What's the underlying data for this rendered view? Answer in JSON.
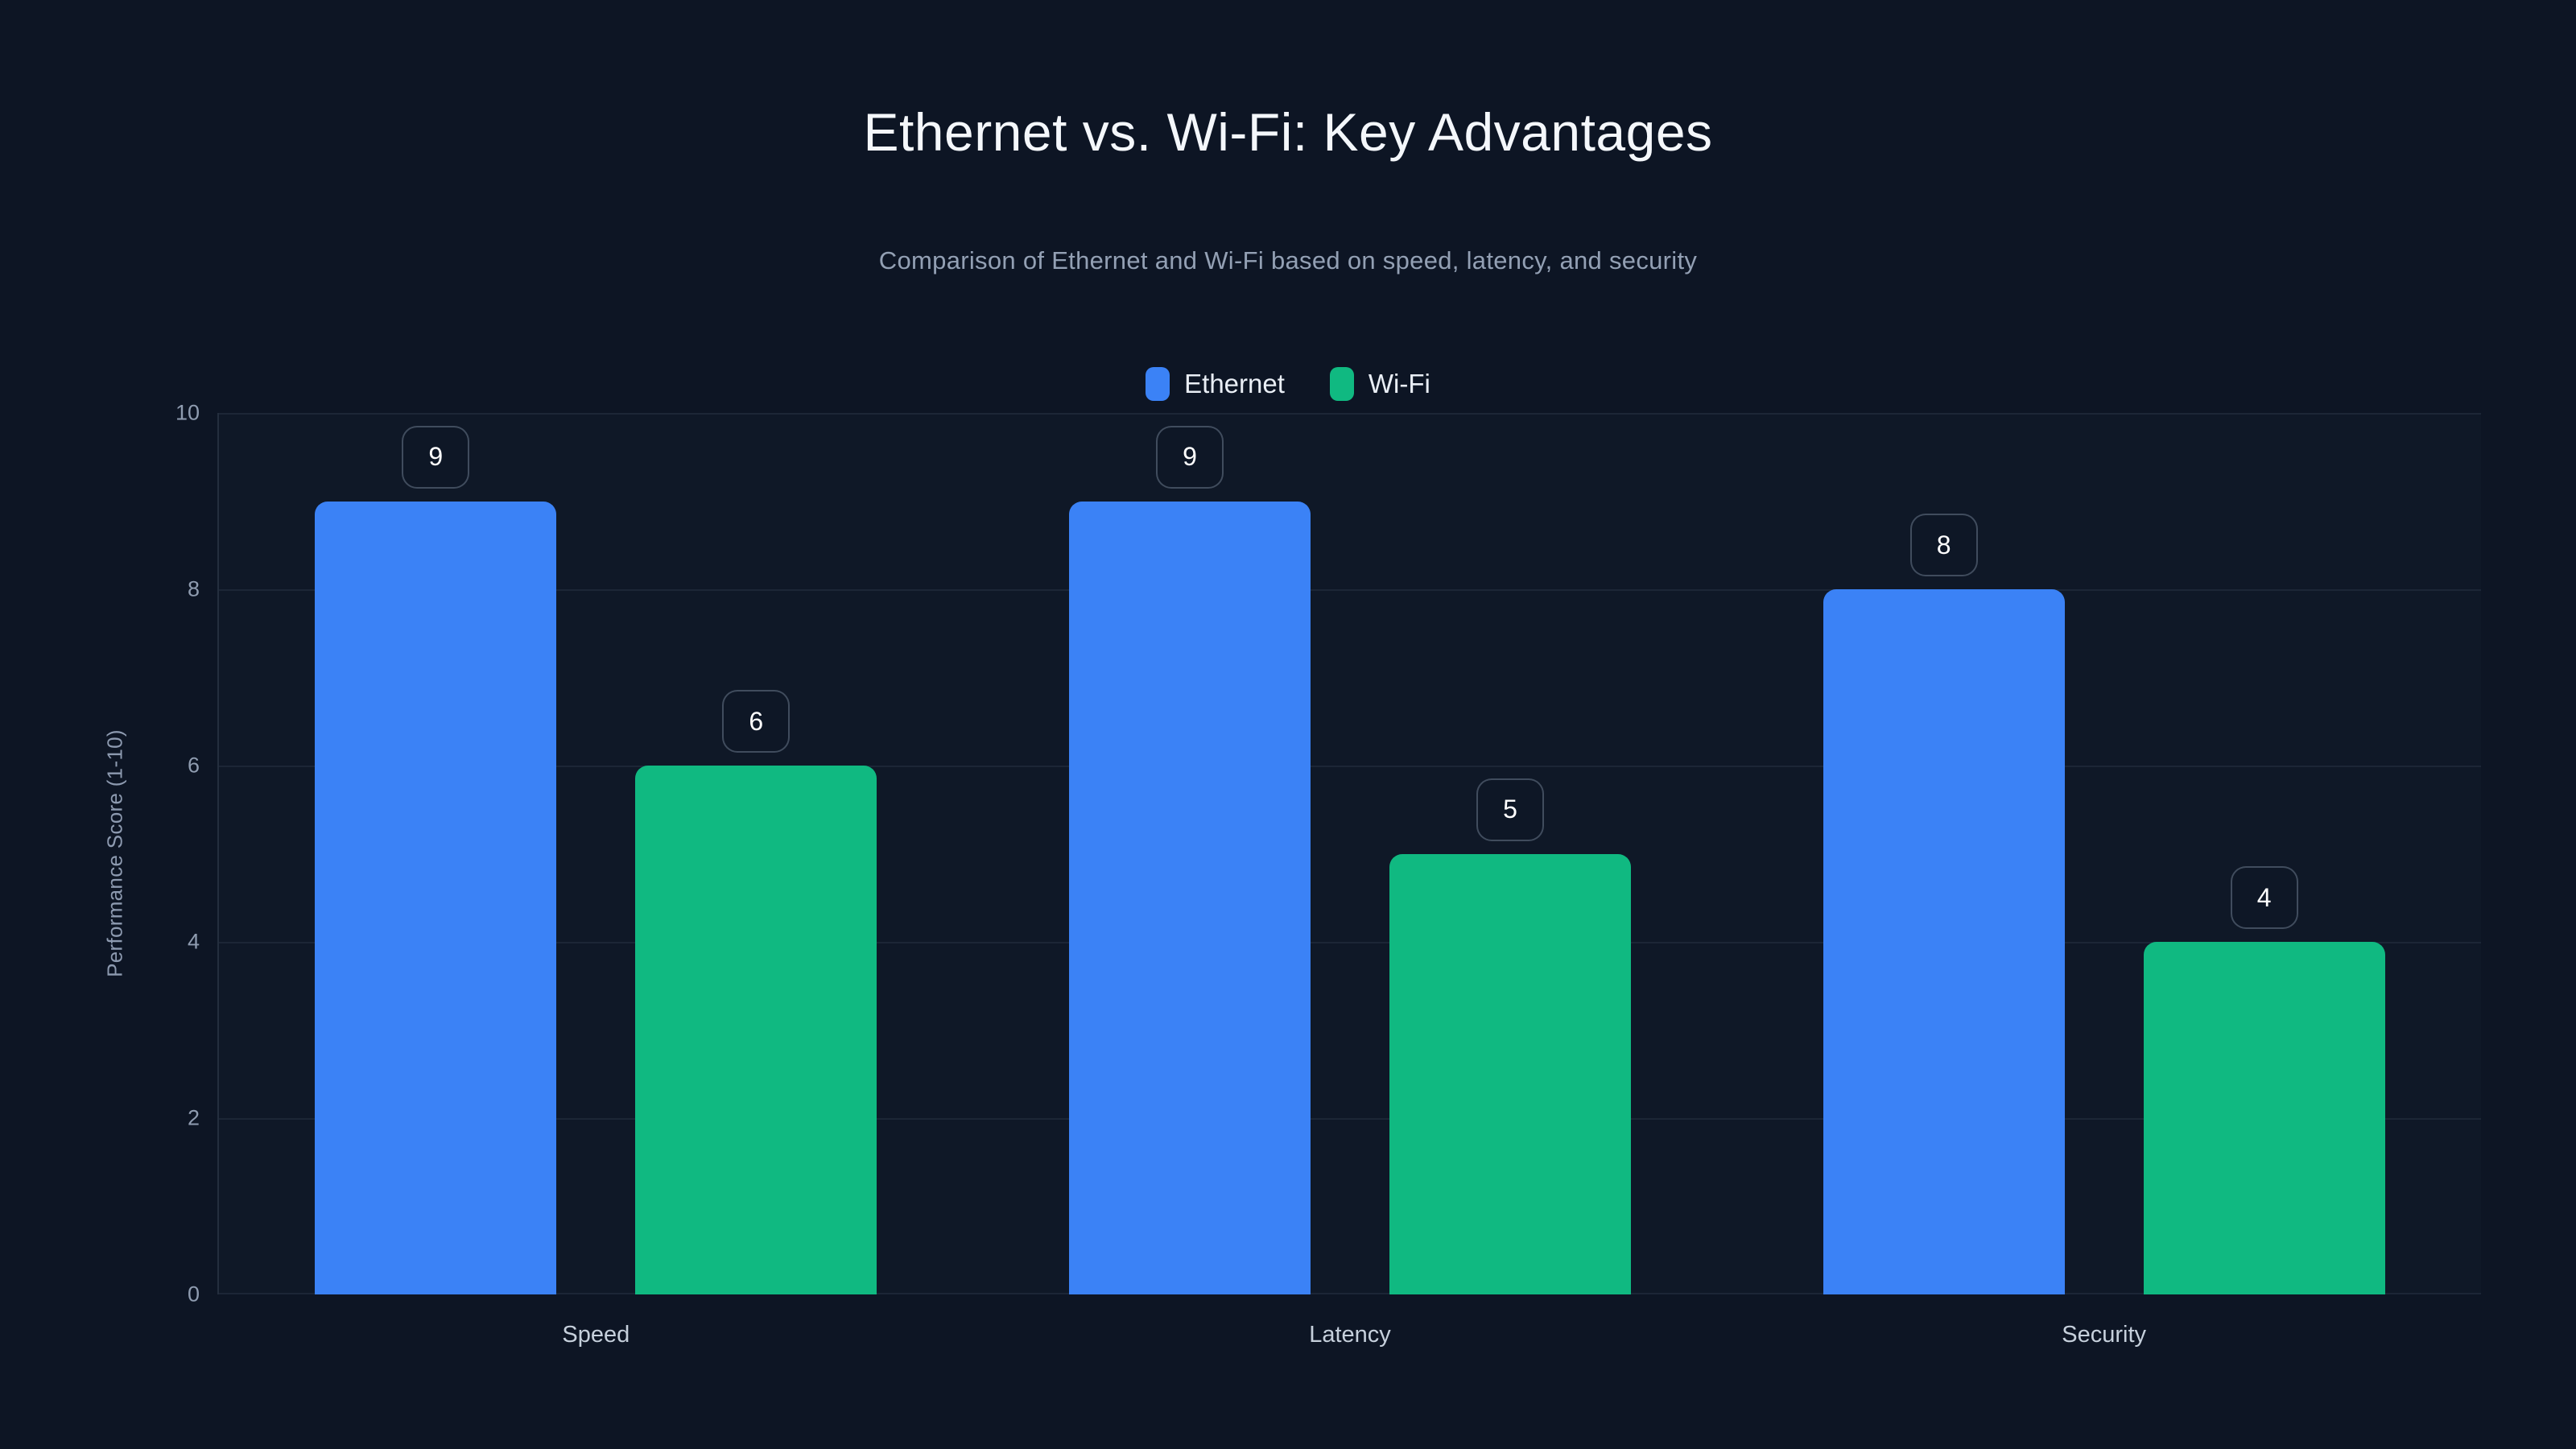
{
  "header": {
    "title": "Ethernet vs. Wi-Fi: Key Advantages",
    "subtitle": "Comparison of Ethernet and Wi-Fi based on speed, latency, and security"
  },
  "legend": [
    {
      "label": "Ethernet",
      "color": "#3b82f6"
    },
    {
      "label": "Wi-Fi",
      "color": "#10b981"
    }
  ],
  "colors": {
    "background": "#0d1524",
    "ethernet_bar": "#3b82f6",
    "wifi_bar": "#10b981",
    "gridline": "rgba(148,163,184,0.10)",
    "tick_text": "#8f9cb0",
    "title_text": "#f4f7fb",
    "subtitle_text": "#93a0b4"
  },
  "chart_data": {
    "type": "bar",
    "title": "Ethernet vs. Wi-Fi: Key Advantages",
    "subtitle": "Comparison of Ethernet and Wi-Fi based on speed, latency, and security",
    "categories": [
      "Speed",
      "Latency",
      "Security"
    ],
    "series": [
      {
        "name": "Ethernet",
        "color": "#3b82f6",
        "values": [
          9,
          9,
          8
        ]
      },
      {
        "name": "Wi-Fi",
        "color": "#10b981",
        "values": [
          6,
          5,
          4
        ]
      }
    ],
    "xlabel": "",
    "ylabel": "Performance Score (1-10)",
    "yticks": [
      0,
      2,
      4,
      6,
      8,
      10
    ],
    "ylim": [
      0,
      10
    ],
    "grid": true,
    "legend_position": "top-center",
    "value_labels": true
  }
}
